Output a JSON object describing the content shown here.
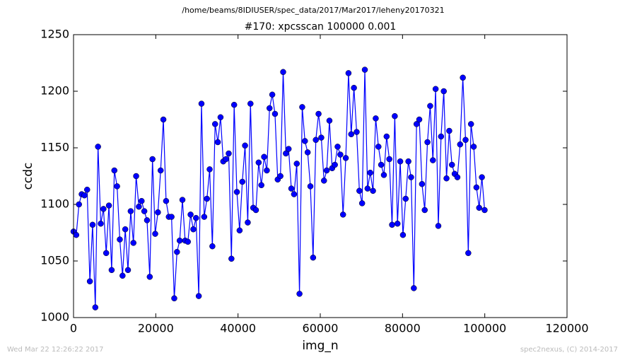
{
  "chart_data": {
    "type": "line",
    "suptitle": "/home/beams/8IDIUSER/spec_data/2017/Mar2017/leheny20170321",
    "title": "#170: xpcsscan 100000 0.001",
    "xlabel": "img_n",
    "ylabel": "ccdc",
    "footer_left": "Wed Mar 22 12:26:22 2017",
    "footer_right": "spec2nexus, (C) 2014-2017",
    "xlim": [
      0,
      120000
    ],
    "xticks": [
      0,
      20000,
      40000,
      60000,
      80000,
      100000,
      120000
    ],
    "ylim": [
      1000,
      1250
    ],
    "yticks": [
      1000,
      1050,
      1100,
      1150,
      1200,
      1250
    ],
    "grid": false,
    "markers": true,
    "x": [
      0,
      662,
      1324,
      1986,
      2648,
      3310,
      3972,
      4634,
      5296,
      5958,
      6620,
      7282,
      7944,
      8606,
      9268,
      9930,
      10592,
      11254,
      11916,
      12578,
      13240,
      13902,
      14564,
      15226,
      15888,
      16550,
      17212,
      17874,
      18536,
      19198,
      19860,
      20522,
      21184,
      21846,
      22508,
      23170,
      23832,
      24494,
      25156,
      25818,
      26480,
      27142,
      27804,
      28466,
      29128,
      29790,
      30452,
      31114,
      31776,
      32438,
      33100,
      33762,
      34424,
      35086,
      35748,
      36410,
      37072,
      37734,
      38396,
      39058,
      39720,
      40382,
      41044,
      41706,
      42368,
      43030,
      43692,
      44354,
      45016,
      45678,
      46340,
      47002,
      47664,
      48326,
      48988,
      49650,
      50312,
      50974,
      51636,
      52298,
      52960,
      53622,
      54284,
      54946,
      55608,
      56270,
      56932,
      57594,
      58256,
      58918,
      59580,
      60242,
      60904,
      61566,
      62228,
      62890,
      63552,
      64214,
      64876,
      65538,
      66200,
      66862,
      67524,
      68186,
      68848,
      69510,
      70172,
      70834,
      71496,
      72158,
      72820,
      73482,
      74144,
      74806,
      75468,
      76130,
      76792,
      77454,
      78116,
      78778,
      79440,
      80102,
      80764,
      81426,
      82088,
      82750,
      83412,
      84074,
      84736,
      85398,
      86060,
      86722,
      87384,
      88046,
      88708,
      89370,
      90032,
      90694,
      91356,
      92018,
      92680,
      93342,
      94004,
      94666,
      95328,
      95990,
      96652,
      97314,
      97976,
      98638,
      99300,
      99962
    ],
    "series": [
      {
        "name": "ccdc",
        "color": "#0000ff",
        "values": [
          1076,
          1073,
          1100,
          1109,
          1108,
          1113,
          1032,
          1082,
          1009,
          1151,
          1083,
          1096,
          1057,
          1099,
          1042,
          1130,
          1116,
          1069,
          1037,
          1078,
          1042,
          1094,
          1066,
          1125,
          1098,
          1103,
          1094,
          1086,
          1036,
          1140,
          1074,
          1093,
          1130,
          1175,
          1103,
          1089,
          1089,
          1017,
          1058,
          1068,
          1104,
          1068,
          1067,
          1091,
          1078,
          1088,
          1019,
          1189,
          1089,
          1105,
          1131,
          1063,
          1171,
          1155,
          1177,
          1138,
          1140,
          1145,
          1052,
          1188,
          1111,
          1077,
          1120,
          1152,
          1084,
          1189,
          1097,
          1095,
          1137,
          1117,
          1142,
          1130,
          1185,
          1197,
          1180,
          1122,
          1125,
          1217,
          1145,
          1149,
          1114,
          1109,
          1136,
          1021,
          1186,
          1156,
          1146,
          1116,
          1053,
          1157,
          1180,
          1159,
          1121,
          1130,
          1174,
          1132,
          1135,
          1151,
          1144,
          1091,
          1141,
          1216,
          1162,
          1203,
          1164,
          1112,
          1101,
          1219,
          1114,
          1128,
          1112,
          1176,
          1151,
          1135,
          1126,
          1160,
          1140,
          1082,
          1178,
          1083,
          1138,
          1073,
          1105,
          1138,
          1124,
          1026,
          1171,
          1175,
          1118,
          1095,
          1155,
          1187,
          1139,
          1202,
          1081,
          1160,
          1200,
          1123,
          1165,
          1135,
          1127,
          1124,
          1153,
          1212,
          1157,
          1057,
          1171,
          1151,
          1115,
          1097,
          1124,
          1095
        ]
      }
    ]
  }
}
